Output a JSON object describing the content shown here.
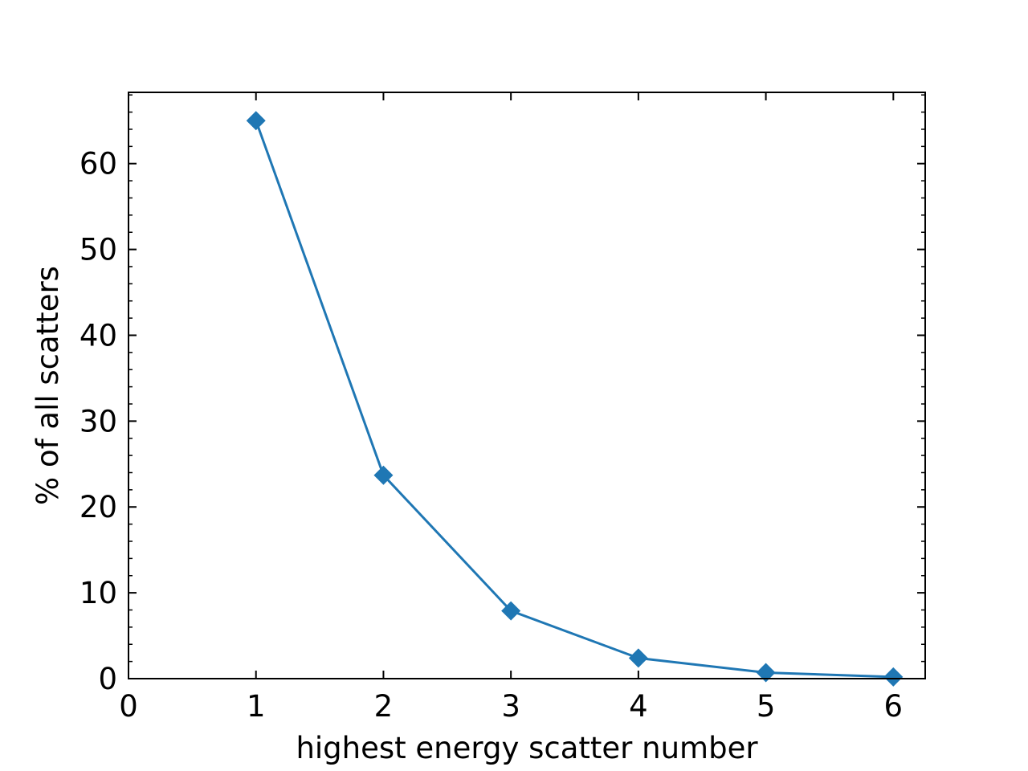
{
  "chart_data": {
    "type": "line",
    "title": "",
    "xlabel": "highest energy scatter number",
    "ylabel": "% of all scatters",
    "xlim": [
      0,
      6.25
    ],
    "ylim": [
      0,
      68.3
    ],
    "xticks": [
      0,
      1,
      2,
      3,
      4,
      5,
      6
    ],
    "xtick_labels": [
      "0",
      "1",
      "2",
      "3",
      "4",
      "5",
      "6"
    ],
    "yticks": [
      0,
      10,
      20,
      30,
      40,
      50,
      60
    ],
    "ytick_labels": [
      "0",
      "10",
      "20",
      "30",
      "40",
      "50",
      "60"
    ],
    "grid": false,
    "legend": "none",
    "marker": "diamond",
    "color": "#1f77b4",
    "x": [
      1,
      2,
      3,
      4,
      5,
      6
    ],
    "series": [
      {
        "values": [
          65.0,
          23.7,
          7.9,
          2.4,
          0.7,
          0.2
        ]
      }
    ]
  }
}
